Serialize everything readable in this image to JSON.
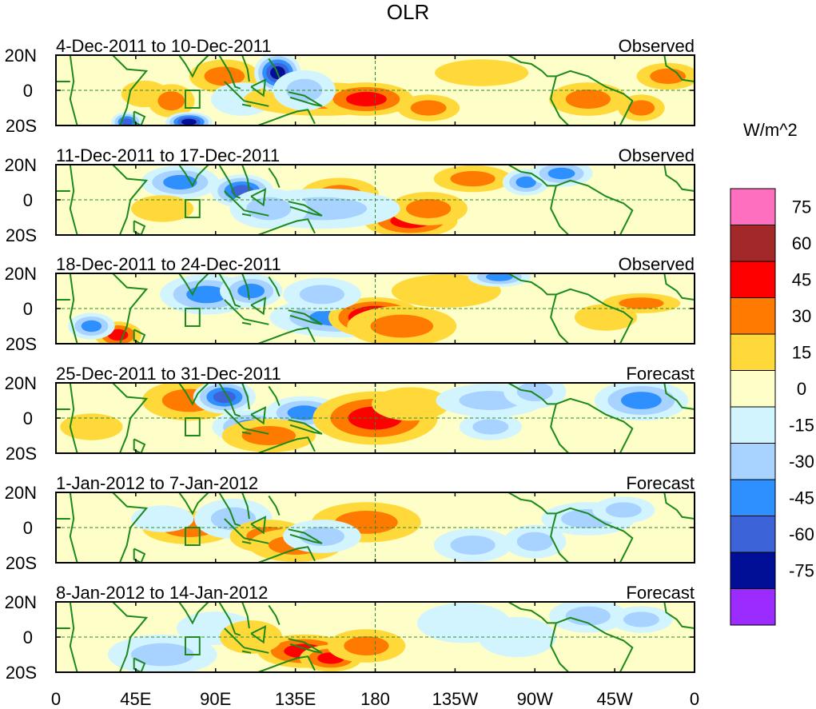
{
  "chart_data": {
    "type": "heatmap",
    "title": "OLR",
    "units_label": "W/m^2",
    "x_ticks": [
      "0",
      "45E",
      "90E",
      "135E",
      "180",
      "135W",
      "90W",
      "45W",
      "0"
    ],
    "y_ticks": [
      "20N",
      "0",
      "20S"
    ],
    "lon_range": [
      0,
      360
    ],
    "lat_range": [
      -20,
      20
    ],
    "colorbar": {
      "levels": [
        "75",
        "60",
        "45",
        "30",
        "15",
        "0",
        "-15",
        "-30",
        "-45",
        "-60",
        "-75"
      ],
      "colors": [
        "#ff6fc0",
        "#a3282a",
        "#ff0000",
        "#ff7a00",
        "#ffd93a",
        "#fefec8",
        "#d2f4ff",
        "#a8d2ff",
        "#2e8fff",
        "#3c64d8",
        "#000f96",
        "#9b2bff"
      ]
    },
    "panels": [
      {
        "period": "4-Dec-2011 to 10-Dec-2011",
        "kind": "Observed",
        "anomalies": [
          [
            50,
            -2,
            6,
            4,
            15
          ],
          [
            65,
            -6,
            6,
            5,
            25
          ],
          [
            95,
            8,
            9,
            5,
            35
          ],
          [
            105,
            -5,
            8,
            5,
            -20
          ],
          [
            150,
            -5,
            20,
            5,
            35
          ],
          [
            175,
            -5,
            12,
            5,
            40
          ],
          [
            210,
            -10,
            8,
            4,
            30
          ],
          [
            240,
            10,
            12,
            4,
            20
          ],
          [
            300,
            -5,
            10,
            5,
            25
          ],
          [
            330,
            -10,
            6,
            4,
            35
          ],
          [
            345,
            8,
            8,
            4,
            30
          ],
          [
            125,
            10,
            6,
            6,
            -70
          ],
          [
            40,
            -18,
            4,
            3,
            -60
          ],
          [
            140,
            0,
            8,
            6,
            -30
          ],
          [
            75,
            -18,
            6,
            3,
            -70
          ]
        ]
      },
      {
        "period": "11-Dec-2011 to 17-Dec-2011",
        "kind": "Observed",
        "anomalies": [
          [
            70,
            10,
            10,
            5,
            -40
          ],
          [
            105,
            5,
            8,
            5,
            -60
          ],
          [
            60,
            -5,
            8,
            4,
            20
          ],
          [
            160,
            3,
            10,
            5,
            35
          ],
          [
            200,
            -12,
            12,
            5,
            40
          ],
          [
            210,
            -5,
            10,
            5,
            30
          ],
          [
            235,
            12,
            10,
            4,
            30
          ],
          [
            265,
            10,
            6,
            4,
            -50
          ],
          [
            285,
            15,
            8,
            4,
            -45
          ],
          [
            150,
            -5,
            20,
            6,
            -25
          ],
          [
            120,
            -5,
            10,
            6,
            -30
          ]
        ]
      },
      {
        "period": "18-Dec-2011 to 24-Dec-2011",
        "kind": "Observed",
        "anomalies": [
          [
            85,
            8,
            12,
            6,
            -45
          ],
          [
            110,
            10,
            8,
            5,
            -50
          ],
          [
            160,
            -5,
            18,
            6,
            -40
          ],
          [
            180,
            -5,
            12,
            6,
            55
          ],
          [
            195,
            -10,
            14,
            6,
            35
          ],
          [
            220,
            10,
            14,
            5,
            20
          ],
          [
            250,
            18,
            8,
            3,
            -50
          ],
          [
            330,
            3,
            10,
            3,
            30
          ],
          [
            310,
            -5,
            8,
            4,
            20
          ],
          [
            35,
            -15,
            6,
            4,
            45
          ],
          [
            20,
            -10,
            6,
            4,
            -40
          ],
          [
            150,
            8,
            10,
            5,
            -25
          ]
        ]
      },
      {
        "period": "25-Dec-2011 to 31-Dec-2011",
        "kind": "Forecast",
        "anomalies": [
          [
            75,
            10,
            12,
            6,
            25
          ],
          [
            95,
            12,
            8,
            5,
            -55
          ],
          [
            110,
            -5,
            10,
            5,
            -45
          ],
          [
            140,
            3,
            10,
            5,
            -50
          ],
          [
            180,
            0,
            16,
            8,
            45
          ],
          [
            200,
            8,
            10,
            5,
            20
          ],
          [
            245,
            10,
            14,
            5,
            -35
          ],
          [
            270,
            15,
            8,
            5,
            -25
          ],
          [
            330,
            10,
            12,
            6,
            -40
          ],
          [
            245,
            -5,
            8,
            4,
            -25
          ],
          [
            20,
            -5,
            8,
            4,
            20
          ],
          [
            120,
            -10,
            12,
            5,
            25
          ]
        ]
      },
      {
        "period": "1-Jan-2012 to 7-Jan-2012",
        "kind": "Forecast",
        "anomalies": [
          [
            75,
            0,
            12,
            5,
            25
          ],
          [
            100,
            5,
            10,
            6,
            -30
          ],
          [
            120,
            -5,
            10,
            5,
            25
          ],
          [
            135,
            -10,
            12,
            5,
            30
          ],
          [
            175,
            3,
            14,
            6,
            35
          ],
          [
            235,
            -10,
            10,
            5,
            -35
          ],
          [
            270,
            -8,
            8,
            5,
            -30
          ],
          [
            300,
            5,
            12,
            5,
            -25
          ],
          [
            320,
            10,
            8,
            4,
            -35
          ],
          [
            60,
            5,
            8,
            4,
            -20
          ],
          [
            150,
            -5,
            10,
            5,
            -25
          ]
        ]
      },
      {
        "period": "8-Jan-2012 to 14-Jan-2012",
        "kind": "Forecast",
        "anomalies": [
          [
            60,
            -10,
            14,
            6,
            -35
          ],
          [
            140,
            -8,
            12,
            5,
            40
          ],
          [
            155,
            -12,
            8,
            4,
            50
          ],
          [
            175,
            -5,
            10,
            5,
            25
          ],
          [
            230,
            8,
            12,
            6,
            -20
          ],
          [
            260,
            0,
            10,
            6,
            -20
          ],
          [
            300,
            12,
            10,
            5,
            -25
          ],
          [
            330,
            10,
            8,
            4,
            -30
          ],
          [
            90,
            5,
            10,
            5,
            -20
          ],
          [
            110,
            0,
            8,
            5,
            20
          ]
        ]
      }
    ]
  }
}
